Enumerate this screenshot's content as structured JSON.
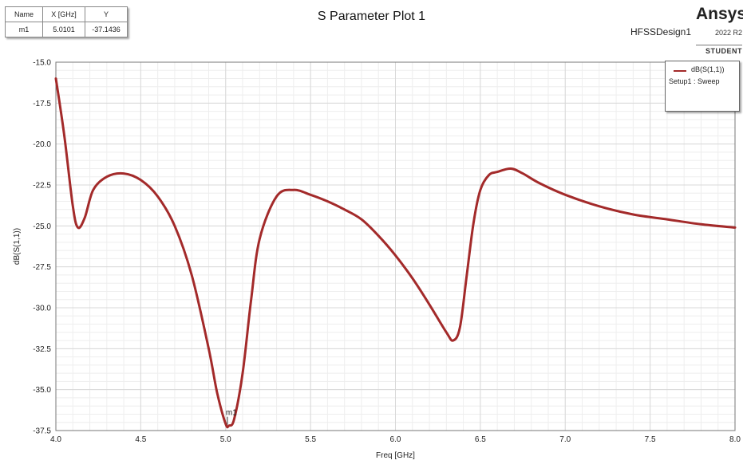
{
  "marker_table": {
    "headers": [
      "Name",
      "X [GHz]",
      "Y"
    ],
    "rows": [
      [
        "m1",
        "5.0101",
        "-37.1436"
      ]
    ]
  },
  "plot_title": "S Parameter Plot 1",
  "design_name": "HFSSDesign1",
  "brand": {
    "name": "Ansys",
    "version": "2022 R2",
    "edition": "STUDENT"
  },
  "legend": {
    "series_name": "dB(S(1,1))",
    "setup": "Setup1 : Sweep"
  },
  "marker_label": "m1",
  "colors": {
    "trace": "#a32a2a",
    "grid_major": "#d8d8d8",
    "grid_minor": "#eeeeee"
  },
  "chart_data": {
    "type": "line",
    "title": "S Parameter Plot 1",
    "xlabel": "Freq [GHz]",
    "ylabel": "dB(S(1,1))",
    "xlim": [
      4.0,
      8.0
    ],
    "ylim": [
      -37.5,
      -15.0
    ],
    "x_ticks": [
      "4.0",
      "4.5",
      "5.0",
      "5.5",
      "6.0",
      "6.5",
      "7.0",
      "7.5",
      "8.0"
    ],
    "y_ticks": [
      "-15.0",
      "-17.5",
      "-20.0",
      "-22.5",
      "-25.0",
      "-27.5",
      "-30.0",
      "-32.5",
      "-35.0",
      "-37.5"
    ],
    "grid": true,
    "legend_position": "top-right",
    "series": [
      {
        "name": "dB(S(1,1))",
        "x": [
          4.0,
          4.05,
          4.1,
          4.13,
          4.17,
          4.22,
          4.3,
          4.4,
          4.5,
          4.6,
          4.7,
          4.8,
          4.9,
          4.95,
          5.0,
          5.02,
          5.05,
          5.1,
          5.15,
          5.2,
          5.3,
          5.4,
          5.5,
          5.6,
          5.7,
          5.8,
          5.9,
          6.0,
          6.1,
          6.2,
          6.3,
          6.34,
          6.38,
          6.42,
          6.46,
          6.5,
          6.55,
          6.6,
          6.68,
          6.75,
          6.85,
          7.0,
          7.2,
          7.4,
          7.6,
          7.8,
          8.0
        ],
        "y": [
          -16.0,
          -19.5,
          -23.8,
          -25.1,
          -24.5,
          -22.8,
          -22.0,
          -21.8,
          -22.2,
          -23.2,
          -25.0,
          -28.0,
          -32.5,
          -35.2,
          -37.1,
          -37.2,
          -36.8,
          -34.0,
          -29.5,
          -25.8,
          -23.2,
          -22.8,
          -23.1,
          -23.5,
          -24.0,
          -24.6,
          -25.6,
          -26.8,
          -28.2,
          -29.8,
          -31.5,
          -32.0,
          -31.2,
          -28.0,
          -24.8,
          -22.8,
          -21.9,
          -21.7,
          -21.5,
          -21.8,
          -22.4,
          -23.1,
          -23.8,
          -24.3,
          -24.6,
          -24.9,
          -25.1
        ]
      }
    ],
    "marker": {
      "name": "m1",
      "x": 5.0101,
      "y": -37.1436
    }
  }
}
